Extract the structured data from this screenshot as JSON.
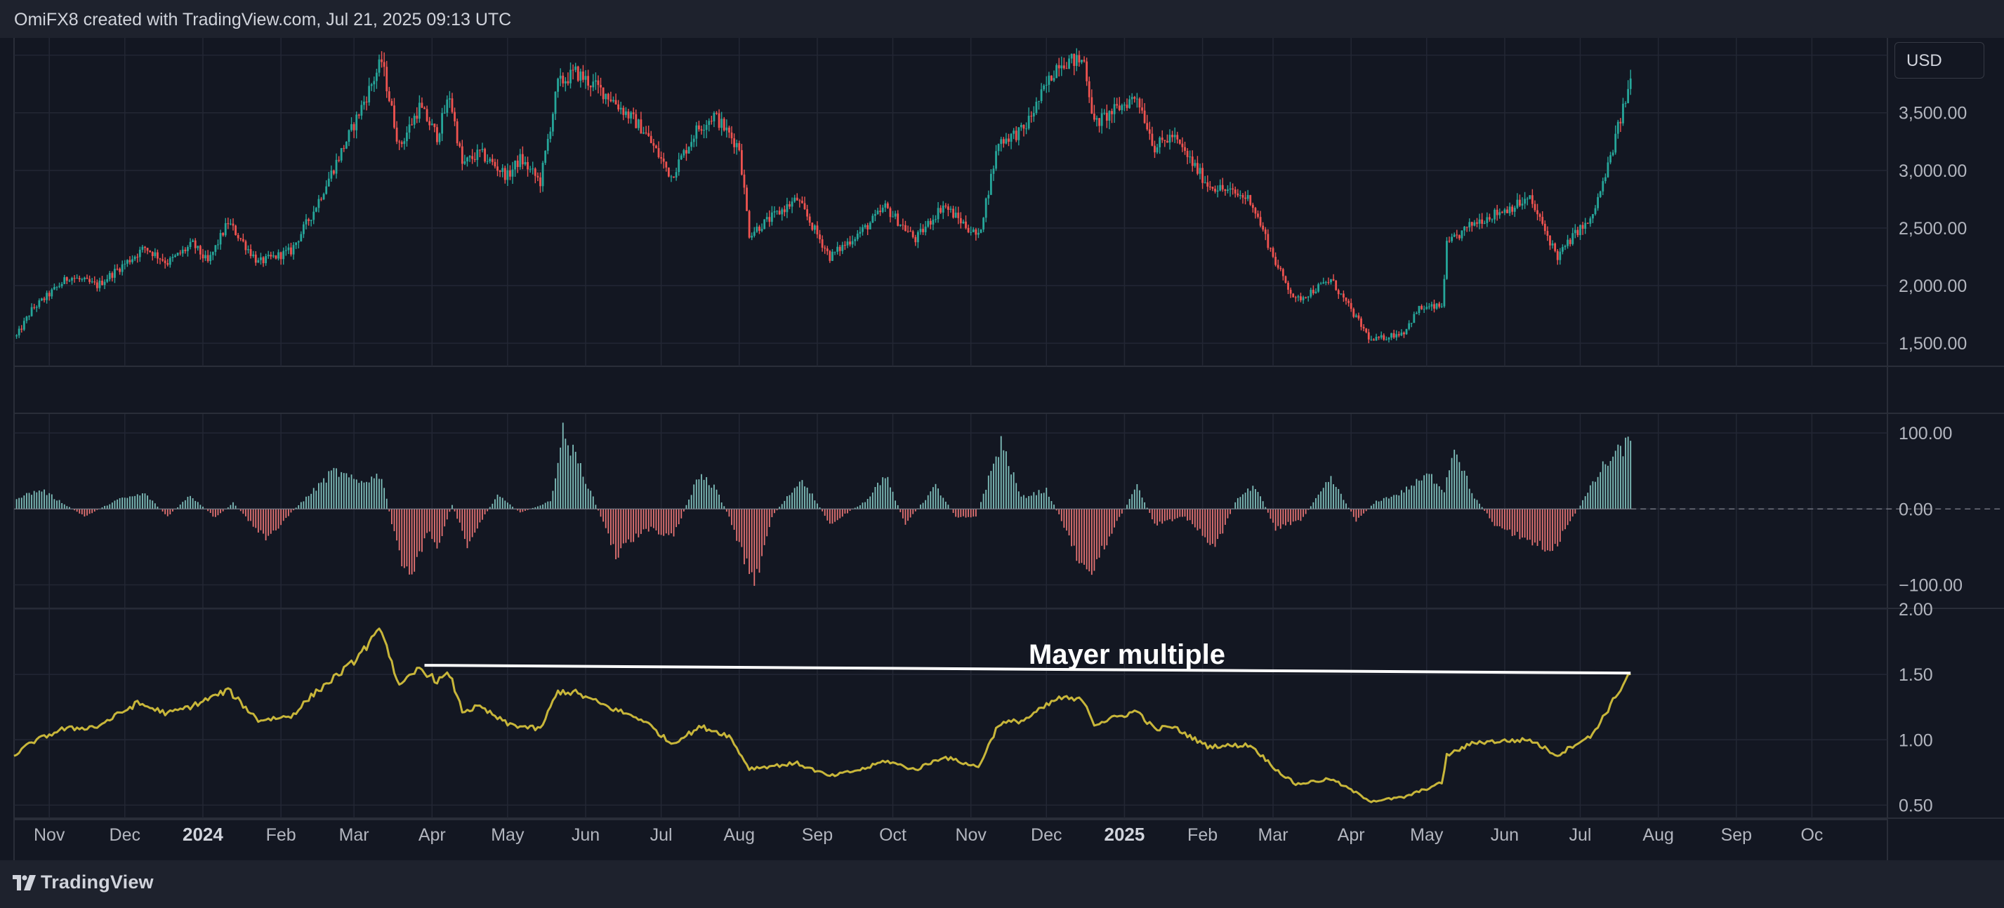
{
  "header": {
    "credit": "OmiFX8 created with TradingView.com, Jul 21, 2025 09:13 UTC"
  },
  "footer": {
    "brand": "TradingView",
    "logo_icon": "tradingview-logo-icon"
  },
  "toolbar": {
    "currency": "USD"
  },
  "colors": {
    "background": "#131722",
    "panel": "#1e222d",
    "grid": "#232734",
    "up": "#26a69a",
    "down": "#ef5350",
    "hist_up": "#7fbfbb",
    "hist_down": "#e57373",
    "mayer_line": "#c8b63a",
    "annotation": "#ffffff",
    "axis_text": "#b2b5be"
  },
  "chart_data": [
    {
      "type": "candlestick",
      "panel": "price",
      "ylim": [
        1300,
        4150
      ],
      "yticks": [
        1500,
        2000,
        2500,
        3000,
        3500
      ],
      "ytick_labels": [
        "1,500.00",
        "2,000.00",
        "2,500.00",
        "3,000.00",
        "3,500.00"
      ],
      "x_range": [
        "2023-10-18",
        "2025-10-31"
      ],
      "anchors": [
        [
          "2023-10-19",
          1560
        ],
        [
          "2023-10-25",
          1790
        ],
        [
          "2023-11-09",
          2080
        ],
        [
          "2023-11-20",
          2000
        ],
        [
          "2023-12-09",
          2330
        ],
        [
          "2023-12-18",
          2200
        ],
        [
          "2023-12-28",
          2360
        ],
        [
          "2024-01-03",
          2200
        ],
        [
          "2024-01-11",
          2550
        ],
        [
          "2024-01-23",
          2200
        ],
        [
          "2024-02-05",
          2300
        ],
        [
          "2024-02-14",
          2650
        ],
        [
          "2024-02-29",
          3350
        ],
        [
          "2024-03-12",
          3950
        ],
        [
          "2024-03-19",
          3200
        ],
        [
          "2024-03-27",
          3550
        ],
        [
          "2024-04-03",
          3300
        ],
        [
          "2024-04-08",
          3650
        ],
        [
          "2024-04-13",
          3050
        ],
        [
          "2024-04-20",
          3150
        ],
        [
          "2024-05-01",
          2950
        ],
        [
          "2024-05-06",
          3100
        ],
        [
          "2024-05-14",
          2900
        ],
        [
          "2024-05-21",
          3750
        ],
        [
          "2024-05-28",
          3850
        ],
        [
          "2024-06-10",
          3650
        ],
        [
          "2024-06-24",
          3350
        ],
        [
          "2024-07-05",
          2950
        ],
        [
          "2024-07-15",
          3350
        ],
        [
          "2024-07-22",
          3480
        ],
        [
          "2024-08-01",
          3200
        ],
        [
          "2024-08-05",
          2450
        ],
        [
          "2024-08-24",
          2750
        ],
        [
          "2024-09-06",
          2250
        ],
        [
          "2024-09-20",
          2500
        ],
        [
          "2024-09-28",
          2680
        ],
        [
          "2024-10-10",
          2400
        ],
        [
          "2024-10-21",
          2700
        ],
        [
          "2024-11-04",
          2420
        ],
        [
          "2024-11-12",
          3250
        ],
        [
          "2024-11-22",
          3350
        ],
        [
          "2024-12-06",
          3950
        ],
        [
          "2024-12-16",
          3950
        ],
        [
          "2024-12-20",
          3400
        ],
        [
          "2025-01-06",
          3650
        ],
        [
          "2025-01-13",
          3200
        ],
        [
          "2025-01-20",
          3300
        ],
        [
          "2025-02-03",
          2880
        ],
        [
          "2025-02-20",
          2750
        ],
        [
          "2025-03-03",
          2150
        ],
        [
          "2025-03-10",
          1870
        ],
        [
          "2025-03-24",
          2050
        ],
        [
          "2025-04-09",
          1520
        ],
        [
          "2025-04-22",
          1600
        ],
        [
          "2025-04-28",
          1800
        ],
        [
          "2025-05-07",
          1820
        ],
        [
          "2025-05-09",
          2350
        ],
        [
          "2025-05-20",
          2550
        ],
        [
          "2025-06-11",
          2750
        ],
        [
          "2025-06-22",
          2250
        ],
        [
          "2025-06-30",
          2480
        ],
        [
          "2025-07-05",
          2550
        ],
        [
          "2025-07-11",
          2950
        ],
        [
          "2025-07-21",
          3780
        ]
      ]
    },
    {
      "type": "histogram",
      "panel": "oscillator",
      "ylim": [
        -130,
        125
      ],
      "yticks": [
        100,
        0,
        -100
      ],
      "ytick_labels": [
        "100.00",
        "0.00",
        "−100.00"
      ],
      "anchors": [
        [
          "2023-10-19",
          15
        ],
        [
          "2023-10-29",
          25
        ],
        [
          "2023-11-15",
          -10
        ],
        [
          "2023-11-28",
          12
        ],
        [
          "2023-12-09",
          20
        ],
        [
          "2023-12-18",
          -10
        ],
        [
          "2023-12-27",
          18
        ],
        [
          "2024-01-06",
          -12
        ],
        [
          "2024-01-13",
          8
        ],
        [
          "2024-01-20",
          -18
        ],
        [
          "2024-01-26",
          -40
        ],
        [
          "2024-02-08",
          5
        ],
        [
          "2024-02-22",
          50
        ],
        [
          "2024-03-03",
          35
        ],
        [
          "2024-03-12",
          45
        ],
        [
          "2024-03-16",
          -20
        ],
        [
          "2024-03-23",
          -100
        ],
        [
          "2024-03-30",
          -30
        ],
        [
          "2024-04-03",
          -50
        ],
        [
          "2024-04-09",
          5
        ],
        [
          "2024-04-15",
          -45
        ],
        [
          "2024-04-27",
          18
        ],
        [
          "2024-05-06",
          -5
        ],
        [
          "2024-05-18",
          10
        ],
        [
          "2024-05-23",
          100
        ],
        [
          "2024-05-30",
          55
        ],
        [
          "2024-06-07",
          -10
        ],
        [
          "2024-06-13",
          -60
        ],
        [
          "2024-06-25",
          -25
        ],
        [
          "2024-07-06",
          -35
        ],
        [
          "2024-07-16",
          45
        ],
        [
          "2024-07-22",
          30
        ],
        [
          "2024-07-28",
          -10
        ],
        [
          "2024-08-07",
          -100
        ],
        [
          "2024-08-14",
          -10
        ],
        [
          "2024-08-26",
          40
        ],
        [
          "2024-09-06",
          -20
        ],
        [
          "2024-09-20",
          10
        ],
        [
          "2024-09-28",
          45
        ],
        [
          "2024-10-06",
          -20
        ],
        [
          "2024-10-18",
          30
        ],
        [
          "2024-10-26",
          -10
        ],
        [
          "2024-11-03",
          -10
        ],
        [
          "2024-11-13",
          88
        ],
        [
          "2024-11-21",
          15
        ],
        [
          "2024-12-01",
          25
        ],
        [
          "2024-12-07",
          -15
        ],
        [
          "2024-12-17",
          -90
        ],
        [
          "2024-12-27",
          -30
        ],
        [
          "2025-01-06",
          30
        ],
        [
          "2025-01-13",
          -20
        ],
        [
          "2025-01-25",
          -10
        ],
        [
          "2025-02-06",
          -50
        ],
        [
          "2025-02-15",
          15
        ],
        [
          "2025-02-22",
          30
        ],
        [
          "2025-03-02",
          -25
        ],
        [
          "2025-03-12",
          -15
        ],
        [
          "2025-03-24",
          40
        ],
        [
          "2025-04-03",
          -15
        ],
        [
          "2025-04-11",
          10
        ],
        [
          "2025-04-20",
          20
        ],
        [
          "2025-05-02",
          45
        ],
        [
          "2025-05-08",
          25
        ],
        [
          "2025-05-12",
          85
        ],
        [
          "2025-05-19",
          20
        ],
        [
          "2025-05-28",
          -20
        ],
        [
          "2025-06-06",
          -35
        ],
        [
          "2025-06-20",
          -55
        ],
        [
          "2025-07-01",
          5
        ],
        [
          "2025-07-10",
          55
        ],
        [
          "2025-07-21",
          90
        ]
      ],
      "zero_line_extends": "dashed to right edge"
    },
    {
      "type": "line",
      "panel": "mayer_multiple",
      "ylim": [
        0.4,
        2.0
      ],
      "yticks": [
        0.5,
        1.0,
        1.5,
        2.0
      ],
      "ytick_labels": [
        "0.50",
        "1.00",
        "1.50",
        "2.00"
      ],
      "anchors": [
        [
          "2023-10-18",
          0.88
        ],
        [
          "2023-10-25",
          0.98
        ],
        [
          "2023-11-06",
          1.08
        ],
        [
          "2023-11-20",
          1.1
        ],
        [
          "2023-12-06",
          1.28
        ],
        [
          "2023-12-18",
          1.2
        ],
        [
          "2023-12-28",
          1.26
        ],
        [
          "2024-01-11",
          1.38
        ],
        [
          "2024-01-23",
          1.15
        ],
        [
          "2024-02-05",
          1.18
        ],
        [
          "2024-02-14",
          1.35
        ],
        [
          "2024-02-29",
          1.58
        ],
        [
          "2024-03-12",
          1.85
        ],
        [
          "2024-03-19",
          1.4
        ],
        [
          "2024-03-27",
          1.55
        ],
        [
          "2024-04-03",
          1.45
        ],
        [
          "2024-04-08",
          1.5
        ],
        [
          "2024-04-13",
          1.22
        ],
        [
          "2024-04-20",
          1.25
        ],
        [
          "2024-05-01",
          1.12
        ],
        [
          "2024-05-14",
          1.08
        ],
        [
          "2024-05-21",
          1.37
        ],
        [
          "2024-05-28",
          1.36
        ],
        [
          "2024-06-10",
          1.25
        ],
        [
          "2024-06-24",
          1.15
        ],
        [
          "2024-07-05",
          0.97
        ],
        [
          "2024-07-17",
          1.1
        ],
        [
          "2024-07-28",
          1.03
        ],
        [
          "2024-08-05",
          0.78
        ],
        [
          "2024-08-24",
          0.82
        ],
        [
          "2024-09-06",
          0.72
        ],
        [
          "2024-09-20",
          0.78
        ],
        [
          "2024-09-28",
          0.84
        ],
        [
          "2024-10-10",
          0.77
        ],
        [
          "2024-10-21",
          0.87
        ],
        [
          "2024-11-04",
          0.79
        ],
        [
          "2024-11-12",
          1.12
        ],
        [
          "2024-11-22",
          1.15
        ],
        [
          "2024-12-06",
          1.32
        ],
        [
          "2024-12-16",
          1.3
        ],
        [
          "2024-12-20",
          1.12
        ],
        [
          "2025-01-06",
          1.22
        ],
        [
          "2025-01-13",
          1.08
        ],
        [
          "2025-01-20",
          1.1
        ],
        [
          "2025-02-03",
          0.95
        ],
        [
          "2025-02-20",
          0.96
        ],
        [
          "2025-03-03",
          0.76
        ],
        [
          "2025-03-10",
          0.66
        ],
        [
          "2025-03-24",
          0.7
        ],
        [
          "2025-04-09",
          0.53
        ],
        [
          "2025-04-22",
          0.56
        ],
        [
          "2025-05-07",
          0.67
        ],
        [
          "2025-05-09",
          0.88
        ],
        [
          "2025-05-20",
          0.98
        ],
        [
          "2025-06-11",
          1.0
        ],
        [
          "2025-06-22",
          0.88
        ],
        [
          "2025-06-30",
          0.98
        ],
        [
          "2025-07-05",
          1.02
        ],
        [
          "2025-07-11",
          1.2
        ],
        [
          "2025-07-21",
          1.52
        ]
      ],
      "reference_line": {
        "from": [
          "2024-03-29",
          1.57
        ],
        "to": [
          "2025-07-21",
          1.51
        ]
      },
      "annotation": "Mayer multiple"
    }
  ],
  "x_axis": {
    "ticks": [
      {
        "label": "Nov",
        "date": "2023-11-01",
        "bold": false
      },
      {
        "label": "Dec",
        "date": "2023-12-01",
        "bold": false
      },
      {
        "label": "2024",
        "date": "2024-01-01",
        "bold": true
      },
      {
        "label": "Feb",
        "date": "2024-02-01",
        "bold": false
      },
      {
        "label": "Mar",
        "date": "2024-03-01",
        "bold": false
      },
      {
        "label": "Apr",
        "date": "2024-04-01",
        "bold": false
      },
      {
        "label": "May",
        "date": "2024-05-01",
        "bold": false
      },
      {
        "label": "Jun",
        "date": "2024-06-01",
        "bold": false
      },
      {
        "label": "Jul",
        "date": "2024-07-01",
        "bold": false
      },
      {
        "label": "Aug",
        "date": "2024-08-01",
        "bold": false
      },
      {
        "label": "Sep",
        "date": "2024-09-01",
        "bold": false
      },
      {
        "label": "Oct",
        "date": "2024-10-01",
        "bold": false
      },
      {
        "label": "Nov",
        "date": "2024-11-01",
        "bold": false
      },
      {
        "label": "Dec",
        "date": "2024-12-01",
        "bold": false
      },
      {
        "label": "2025",
        "date": "2025-01-01",
        "bold": true
      },
      {
        "label": "Feb",
        "date": "2025-02-01",
        "bold": false
      },
      {
        "label": "Mar",
        "date": "2025-03-01",
        "bold": false
      },
      {
        "label": "Apr",
        "date": "2025-04-01",
        "bold": false
      },
      {
        "label": "May",
        "date": "2025-05-01",
        "bold": false
      },
      {
        "label": "Jun",
        "date": "2025-06-01",
        "bold": false
      },
      {
        "label": "Jul",
        "date": "2025-07-01",
        "bold": false
      },
      {
        "label": "Aug",
        "date": "2025-08-01",
        "bold": false
      },
      {
        "label": "Sep",
        "date": "2025-09-01",
        "bold": false
      },
      {
        "label": "Oc",
        "date": "2025-10-01",
        "bold": false
      }
    ]
  }
}
